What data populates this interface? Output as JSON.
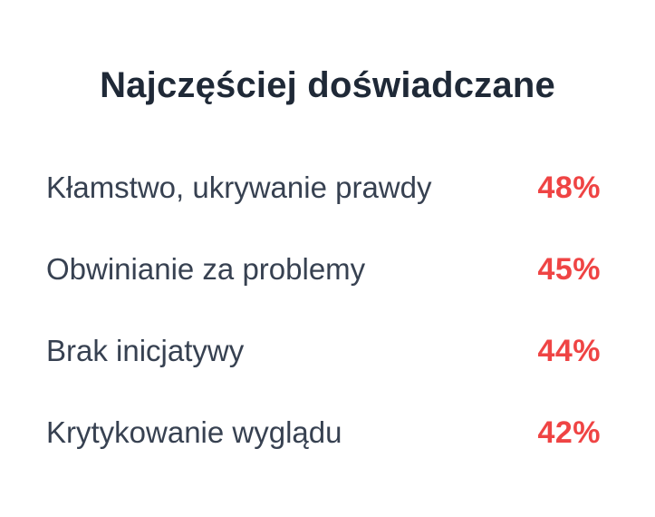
{
  "title": "Najczęściej doświadczane",
  "items": [
    {
      "label": "Kłamstwo, ukrywanie prawdy",
      "value": "48%"
    },
    {
      "label": "Obwinianie za problemy",
      "value": "45%"
    },
    {
      "label": "Brak inicjatywy",
      "value": "44%"
    },
    {
      "label": "Krytykowanie wyglądu",
      "value": "42%"
    }
  ],
  "colors": {
    "title": "#1f2937",
    "label": "#374151",
    "value": "#ef4444",
    "background": "#ffffff"
  }
}
